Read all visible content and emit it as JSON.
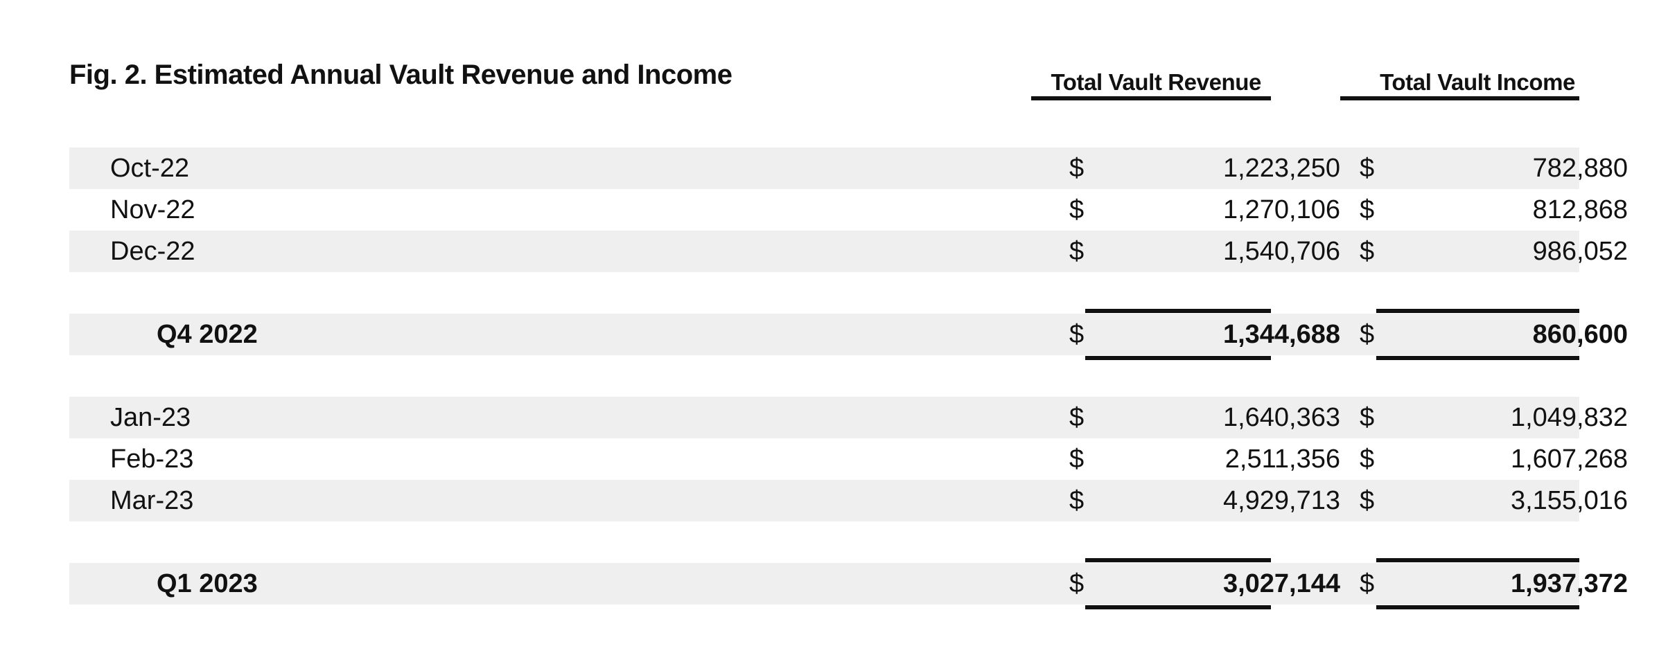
{
  "title": "Fig. 2. Estimated Annual Vault Revenue and Income",
  "columns": {
    "revenue": "Total Vault Revenue",
    "income": "Total Vault Income"
  },
  "currency_symbol": "$",
  "rows": [
    {
      "label": "Oct-22",
      "type": "month",
      "revenue": "1,223,250",
      "income": "782,880"
    },
    {
      "label": "Nov-22",
      "type": "month",
      "revenue": "1,270,106",
      "income": "812,868"
    },
    {
      "label": "Dec-22",
      "type": "month",
      "revenue": "1,540,706",
      "income": "986,052"
    },
    {
      "label": "Q4 2022",
      "type": "quarter",
      "revenue": "1,344,688",
      "income": "860,600"
    },
    {
      "label": "Jan-23",
      "type": "month",
      "revenue": "1,640,363",
      "income": "1,049,832"
    },
    {
      "label": "Feb-23",
      "type": "month",
      "revenue": "2,511,356",
      "income": "1,607,268"
    },
    {
      "label": "Mar-23",
      "type": "month",
      "revenue": "4,929,713",
      "income": "3,155,016"
    },
    {
      "label": "Q1 2023",
      "type": "quarter",
      "revenue": "3,027,144",
      "income": "1,937,372"
    }
  ]
}
